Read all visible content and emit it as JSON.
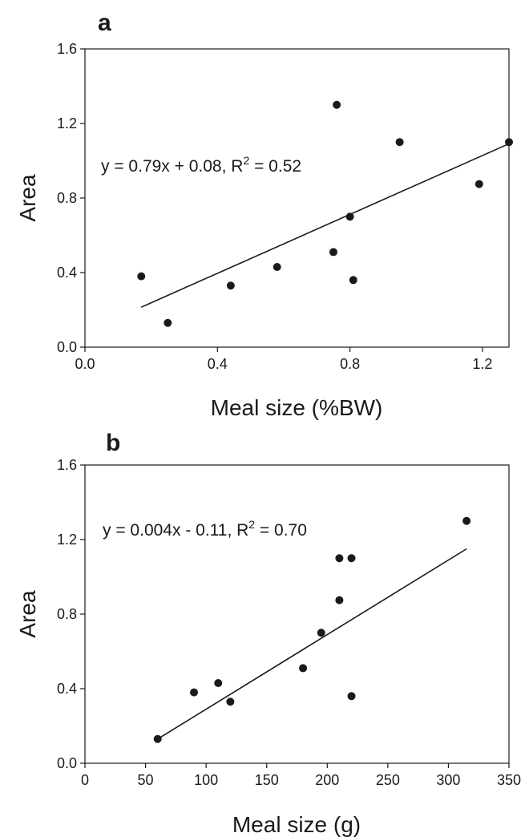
{
  "chart_data": [
    {
      "type": "scatter",
      "panel_label": "a",
      "xlabel": "Meal size (%BW)",
      "ylabel": "Area",
      "xlim": [
        0.0,
        1.28
      ],
      "ylim": [
        0.0,
        1.6
      ],
      "xticks": [
        0.0,
        0.4,
        0.8,
        1.2
      ],
      "xtick_labels": [
        "0.0",
        "0.4",
        "0.8",
        "1.2"
      ],
      "yticks": [
        0.0,
        0.4,
        0.8,
        1.2,
        1.6
      ],
      "ytick_labels": [
        "0.0",
        "0.4",
        "0.8",
        "1.2",
        "1.6"
      ],
      "points": [
        {
          "x": 0.17,
          "y": 0.38
        },
        {
          "x": 0.25,
          "y": 0.13
        },
        {
          "x": 0.44,
          "y": 0.33
        },
        {
          "x": 0.58,
          "y": 0.43
        },
        {
          "x": 0.75,
          "y": 0.51
        },
        {
          "x": 0.76,
          "y": 1.3
        },
        {
          "x": 0.8,
          "y": 0.7
        },
        {
          "x": 0.81,
          "y": 0.36
        },
        {
          "x": 0.95,
          "y": 1.1
        },
        {
          "x": 1.19,
          "y": 0.875
        },
        {
          "x": 1.28,
          "y": 1.1
        }
      ],
      "fit": {
        "slope": 0.79,
        "intercept": 0.08,
        "x_range": [
          0.17,
          1.28
        ]
      },
      "equation": {
        "main": "y = 0.79x + 0.08, R",
        "sup": "2",
        "tail": " = 0.52"
      },
      "grid": false
    },
    {
      "type": "scatter",
      "panel_label": "b",
      "xlabel": "Meal size (g)",
      "ylabel": "Area",
      "xlim": [
        0,
        350
      ],
      "ylim": [
        0.0,
        1.6
      ],
      "xticks": [
        0,
        50,
        100,
        150,
        200,
        250,
        300,
        350
      ],
      "xtick_labels": [
        "0",
        "50",
        "100",
        "150",
        "200",
        "250",
        "300",
        "350"
      ],
      "yticks": [
        0.0,
        0.4,
        0.8,
        1.2,
        1.6
      ],
      "ytick_labels": [
        "0.0",
        "0.4",
        "0.8",
        "1.2",
        "1.6"
      ],
      "points": [
        {
          "x": 60,
          "y": 0.13
        },
        {
          "x": 90,
          "y": 0.38
        },
        {
          "x": 110,
          "y": 0.43
        },
        {
          "x": 120,
          "y": 0.33
        },
        {
          "x": 180,
          "y": 0.51
        },
        {
          "x": 195,
          "y": 0.7
        },
        {
          "x": 210,
          "y": 0.875
        },
        {
          "x": 210,
          "y": 1.1
        },
        {
          "x": 220,
          "y": 1.1
        },
        {
          "x": 220,
          "y": 0.36
        },
        {
          "x": 315,
          "y": 1.3
        }
      ],
      "fit": {
        "slope": 0.004,
        "intercept": -0.11,
        "x_range": [
          60,
          315
        ]
      },
      "equation": {
        "main": "y = 0.004x - 0.11, R",
        "sup": "2",
        "tail": " = 0.70"
      },
      "grid": false
    }
  ]
}
